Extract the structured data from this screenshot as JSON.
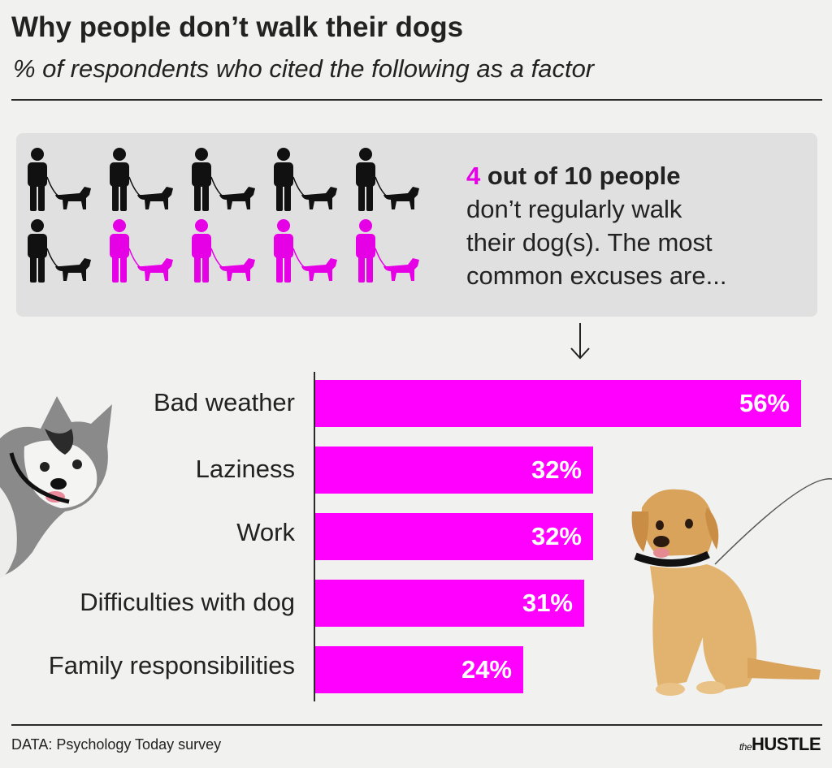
{
  "title": "Why people don’t walk their dogs",
  "subtitle": "% of respondents who cited the following as a factor",
  "callout": {
    "number": "4",
    "headline_rest": " out of 10 people",
    "body_line1": "don’t regularly walk",
    "body_line2": "their dog(s). The most",
    "body_line3": "common excuses are..."
  },
  "icon_grid": {
    "total": 10,
    "highlighted": 4,
    "colors": {
      "base": "#111111",
      "highlight": "#e600e6"
    }
  },
  "chart_data": {
    "type": "bar",
    "orientation": "horizontal",
    "categories": [
      "Bad weather",
      "Laziness",
      "Work",
      "Difficulties with dog",
      "Family responsibilities"
    ],
    "values": [
      56,
      32,
      32,
      31,
      24
    ],
    "value_labels": [
      "56%",
      "32%",
      "32%",
      "31%",
      "24%"
    ],
    "xlim": [
      0,
      56
    ],
    "bar_color": "#ff00ff"
  },
  "footer": {
    "source": "DATA: Psychology Today survey",
    "brand_prefix": "the",
    "brand": "HUSTLE"
  },
  "images": [
    "husky-dog",
    "golden-retriever-puppy"
  ]
}
